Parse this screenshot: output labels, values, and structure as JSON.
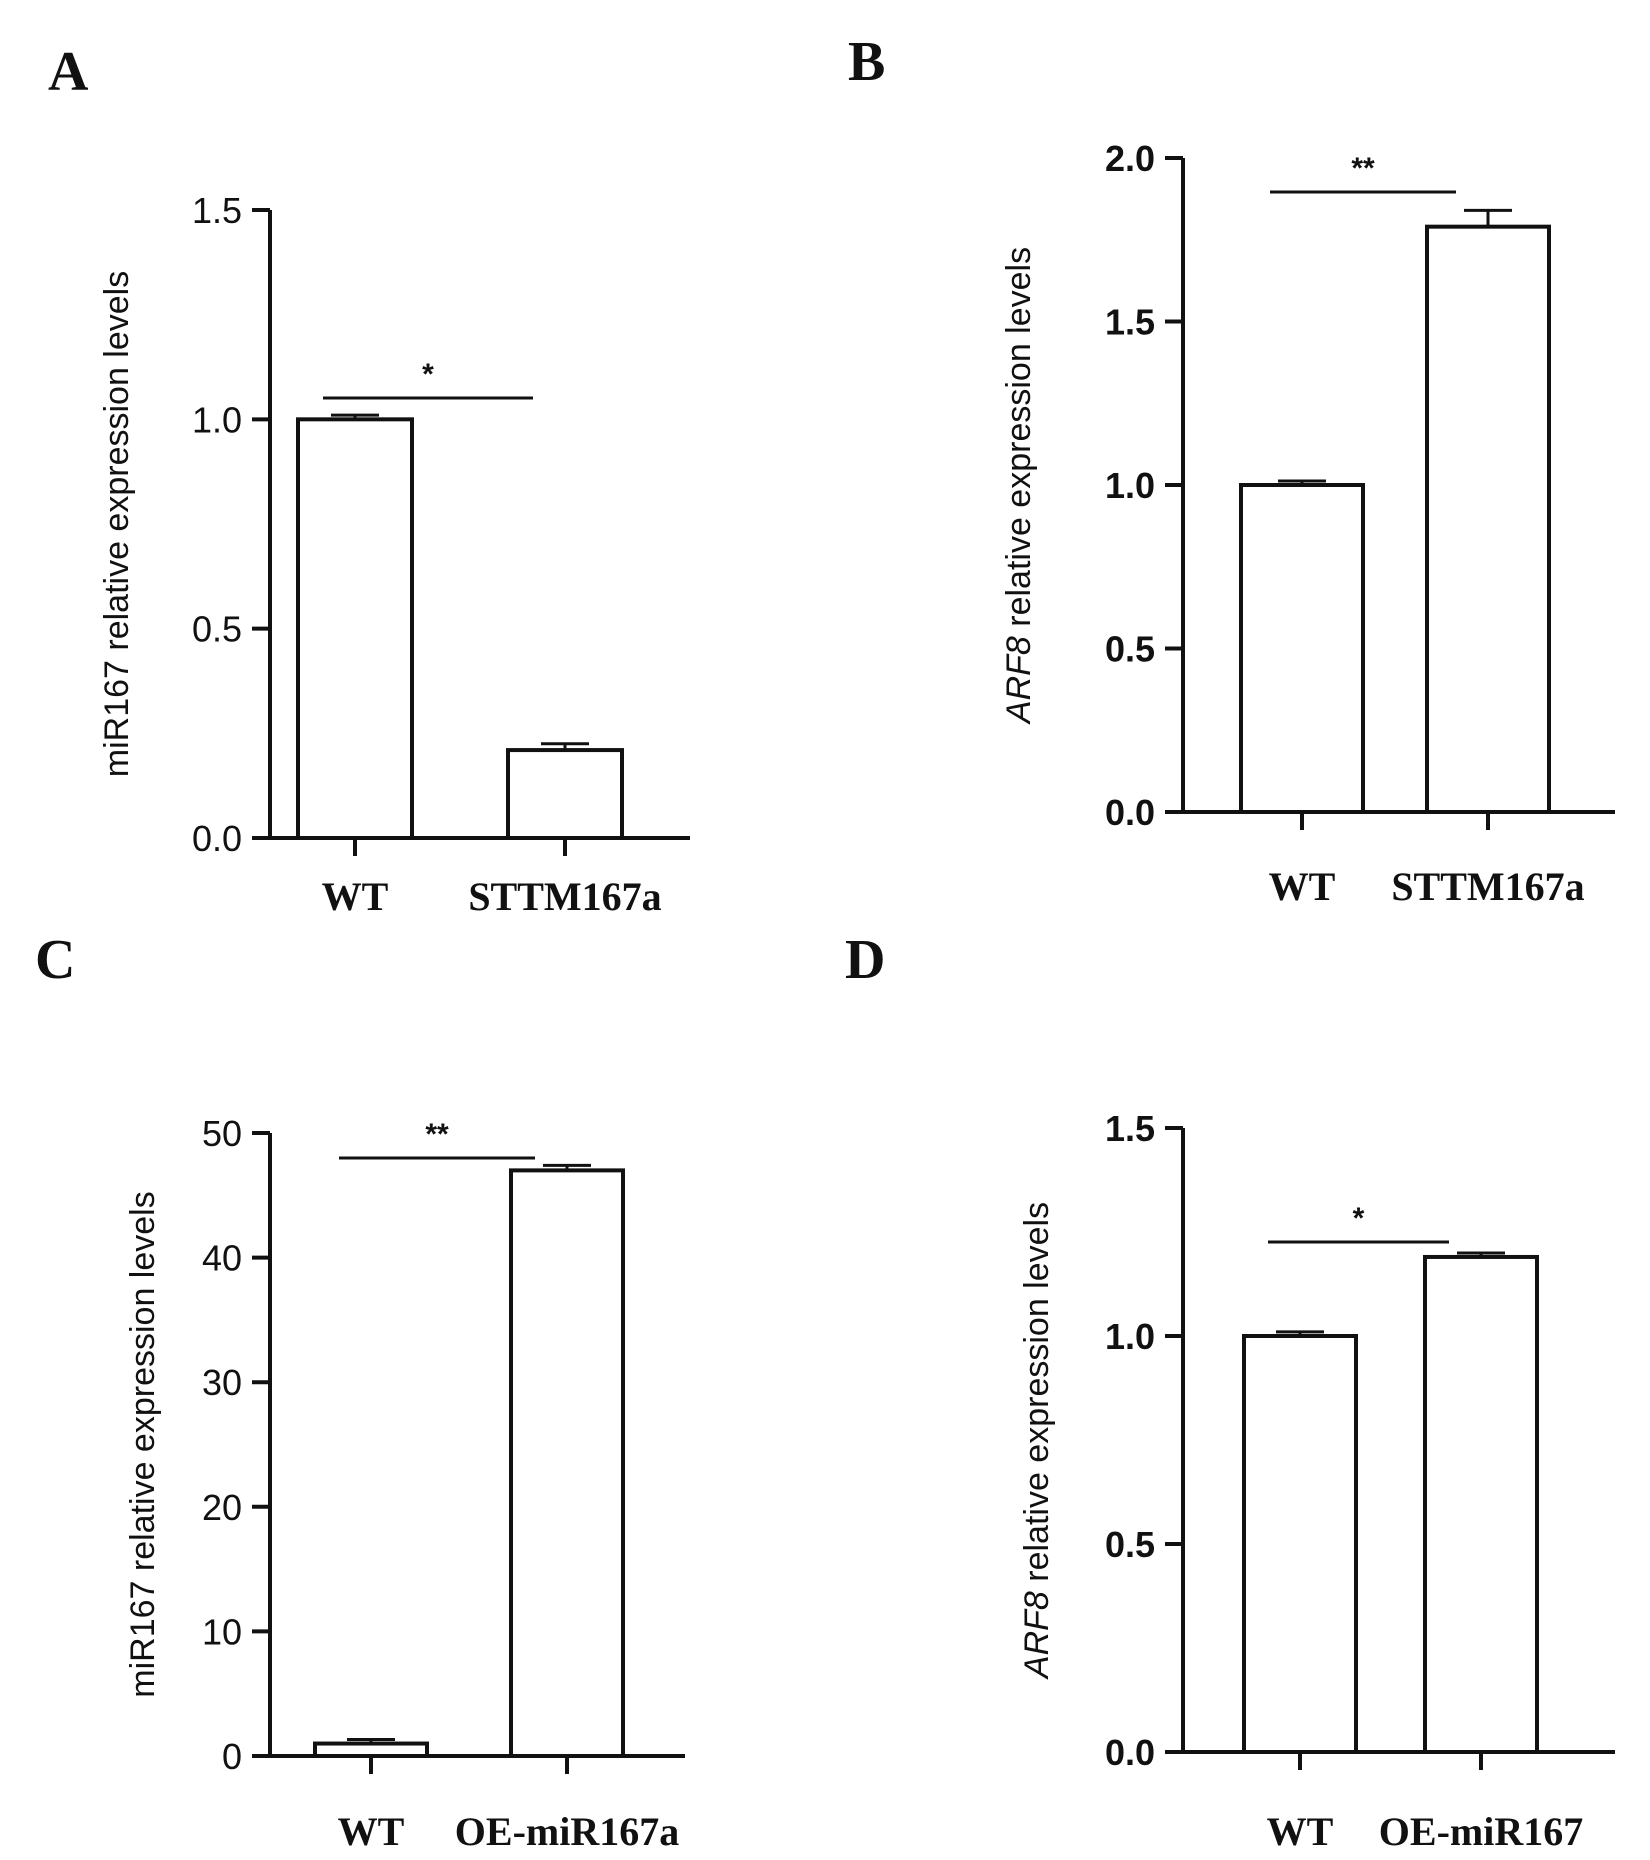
{
  "chart_data": [
    {
      "panel": "A",
      "type": "bar",
      "categories": [
        "WT",
        "STTM167a"
      ],
      "values": [
        1.0,
        0.21
      ],
      "errors": [
        0.01,
        0.015
      ],
      "ylim": [
        0,
        1.5
      ],
      "yticks": [
        "0.0",
        "0.5",
        "1.0",
        "1.5"
      ],
      "ytick_values": [
        0,
        0.5,
        1.0,
        1.5
      ],
      "ylabel_prefix": "",
      "ylabel_italic": "",
      "ylabel": "miR167 relative expression levels",
      "significance": "*"
    },
    {
      "panel": "B",
      "type": "bar",
      "categories": [
        "WT",
        "STTM167a"
      ],
      "values": [
        1.0,
        1.79
      ],
      "errors": [
        0.01,
        0.05
      ],
      "ylim": [
        0,
        2.0
      ],
      "yticks": [
        "0.0",
        "0.5",
        "1.0",
        "1.5",
        "2.0"
      ],
      "ytick_values": [
        0,
        0.5,
        1.0,
        1.5,
        2.0
      ],
      "ylabel_italic": "ARF8",
      "ylabel": " relative expression levels",
      "significance": "**"
    },
    {
      "panel": "C",
      "type": "bar",
      "categories": [
        "WT",
        "OE-miR167a"
      ],
      "values": [
        1.0,
        47.0
      ],
      "errors": [
        0.1,
        0.4
      ],
      "ylim": [
        0,
        50
      ],
      "yticks": [
        "0",
        "10",
        "20",
        "30",
        "40",
        "50"
      ],
      "ytick_values": [
        0,
        10,
        20,
        30,
        40,
        50
      ],
      "ylabel_italic": "",
      "ylabel": "miR167 relative expression levels",
      "significance": "**"
    },
    {
      "panel": "D",
      "type": "bar",
      "categories": [
        "WT",
        "OE-miR167"
      ],
      "values": [
        1.0,
        1.19
      ],
      "errors": [
        0.01,
        0.005
      ],
      "ylim": [
        0,
        1.5
      ],
      "yticks": [
        "0.0",
        "0.5",
        "1.0",
        "1.5"
      ],
      "ytick_values": [
        0,
        0.5,
        1.0,
        1.5
      ],
      "ylabel_italic": "ARF8",
      "ylabel": " relative expression levels",
      "significance": "*"
    }
  ],
  "colors": {
    "bar_fill": "#ffffff",
    "stroke": "#111111"
  }
}
